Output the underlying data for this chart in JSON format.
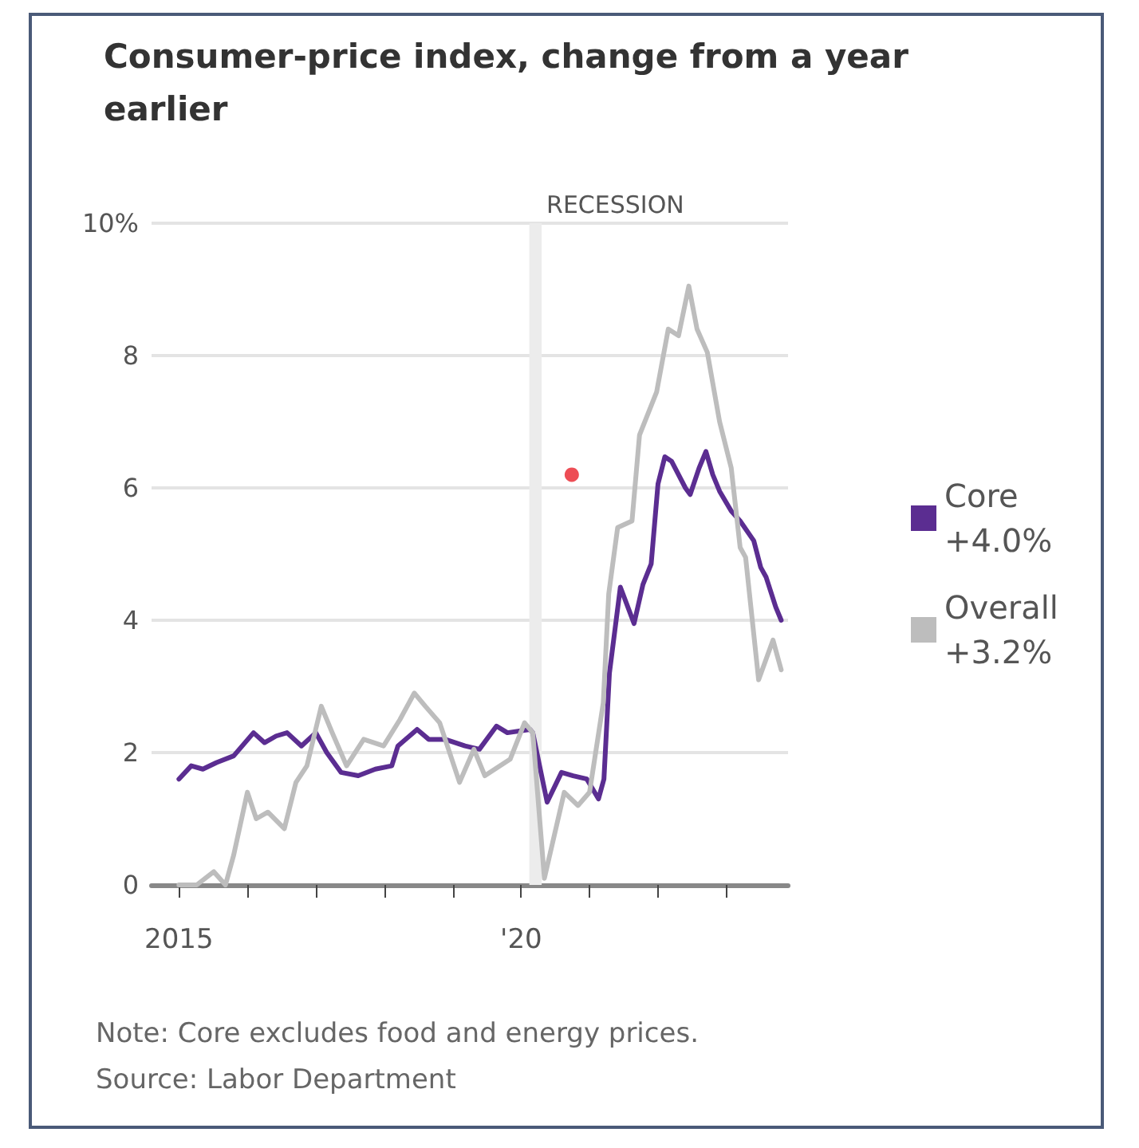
{
  "chart_data": {
    "type": "line",
    "title": "Consumer-price index, change from a year earlier",
    "xlim": [
      2014.6,
      2023.9
    ],
    "xticks": [
      {
        "value": 2015,
        "label": "2015"
      },
      {
        "value": 2016,
        "label": null
      },
      {
        "value": 2017,
        "label": null
      },
      {
        "value": 2018,
        "label": null
      },
      {
        "value": 2019,
        "label": null
      },
      {
        "value": 2020,
        "label": "'20"
      },
      {
        "value": 2021,
        "label": null
      },
      {
        "value": 2022,
        "label": null
      },
      {
        "value": 2023,
        "label": null
      }
    ],
    "ylim": [
      0,
      10
    ],
    "yticks": [
      0,
      2,
      4,
      6,
      8,
      {
        "value": 10,
        "label": "10%"
      }
    ],
    "grid": "y",
    "legend": "right",
    "line_style": "solid",
    "bands": [
      {
        "axis": "x",
        "from": 2020.12,
        "to": 2020.3,
        "label": "RECESSION",
        "color": "#ececec"
      }
    ],
    "series": [
      {
        "name": "Overall +3.2%",
        "color": "#bdbdbd",
        "x": [
          2015.0,
          2015.18,
          2015.26,
          2015.51,
          2015.68,
          2015.8,
          2016.0,
          2016.13,
          2016.3,
          2016.54,
          2016.71,
          2016.87,
          2017.08,
          2017.24,
          2017.45,
          2017.7,
          2017.99,
          2018.23,
          2018.44,
          2018.6,
          2018.81,
          2019.1,
          2019.31,
          2019.47,
          2019.84,
          2020.05,
          2020.17,
          2020.34,
          2020.63,
          2020.83,
          2021.0,
          2021.2,
          2021.28,
          2021.41,
          2021.62,
          2021.73,
          2021.98,
          2022.15,
          2022.3,
          2022.45,
          2022.57,
          2022.72,
          2022.9,
          2023.07,
          2023.2,
          2023.28,
          2023.47,
          2023.68,
          2023.8
        ],
        "values": [
          0.0,
          0.0,
          0.0,
          0.2,
          0.0,
          0.45,
          1.4,
          1.0,
          1.1,
          0.85,
          1.55,
          1.8,
          2.7,
          2.3,
          1.8,
          2.2,
          2.1,
          2.5,
          2.9,
          2.7,
          2.45,
          1.55,
          2.05,
          1.65,
          1.9,
          2.45,
          2.3,
          0.1,
          1.4,
          1.2,
          1.4,
          2.75,
          4.4,
          5.4,
          5.5,
          6.8,
          7.45,
          8.4,
          8.3,
          9.05,
          8.4,
          8.05,
          7.0,
          6.3,
          5.1,
          4.95,
          3.1,
          3.7,
          3.25
        ]
      },
      {
        "name": "Core +4.0%",
        "color": "#5b2d91",
        "x": [
          2015.0,
          2015.18,
          2015.35,
          2015.55,
          2015.8,
          2016.09,
          2016.25,
          2016.42,
          2016.58,
          2016.79,
          2017.0,
          2017.16,
          2017.37,
          2017.62,
          2017.87,
          2018.11,
          2018.2,
          2018.48,
          2018.65,
          2018.89,
          2019.18,
          2019.39,
          2019.64,
          2019.8,
          2020.13,
          2020.17,
          2020.38,
          2020.59,
          2020.76,
          2020.96,
          2021.13,
          2021.21,
          2021.29,
          2021.45,
          2021.65,
          2021.78,
          2021.9,
          2022.0,
          2022.1,
          2022.2,
          2022.4,
          2022.47,
          2022.6,
          2022.7,
          2022.8,
          2022.9,
          2023.07,
          2023.2,
          2023.4,
          2023.5,
          2023.58,
          2023.72,
          2023.8
        ],
        "values": [
          1.6,
          1.8,
          1.75,
          1.85,
          1.95,
          2.3,
          2.15,
          2.25,
          2.3,
          2.1,
          2.3,
          2.0,
          1.7,
          1.65,
          1.75,
          1.8,
          2.1,
          2.35,
          2.2,
          2.2,
          2.1,
          2.05,
          2.4,
          2.3,
          2.35,
          2.3,
          1.25,
          1.7,
          1.65,
          1.6,
          1.3,
          1.6,
          3.2,
          4.5,
          3.95,
          4.54,
          4.85,
          6.06,
          6.47,
          6.4,
          6.0,
          5.9,
          6.3,
          6.55,
          6.2,
          5.95,
          5.65,
          5.5,
          5.2,
          4.8,
          4.65,
          4.2,
          4.0
        ]
      },
      {
        "type": "scatter",
        "color": "#e8202a",
        "x": [
          2020.74
        ],
        "values": [
          6.2
        ]
      }
    ],
    "annotations": [
      "Note: Core excludes food and energy prices.",
      "Source: Labor Department"
    ]
  }
}
